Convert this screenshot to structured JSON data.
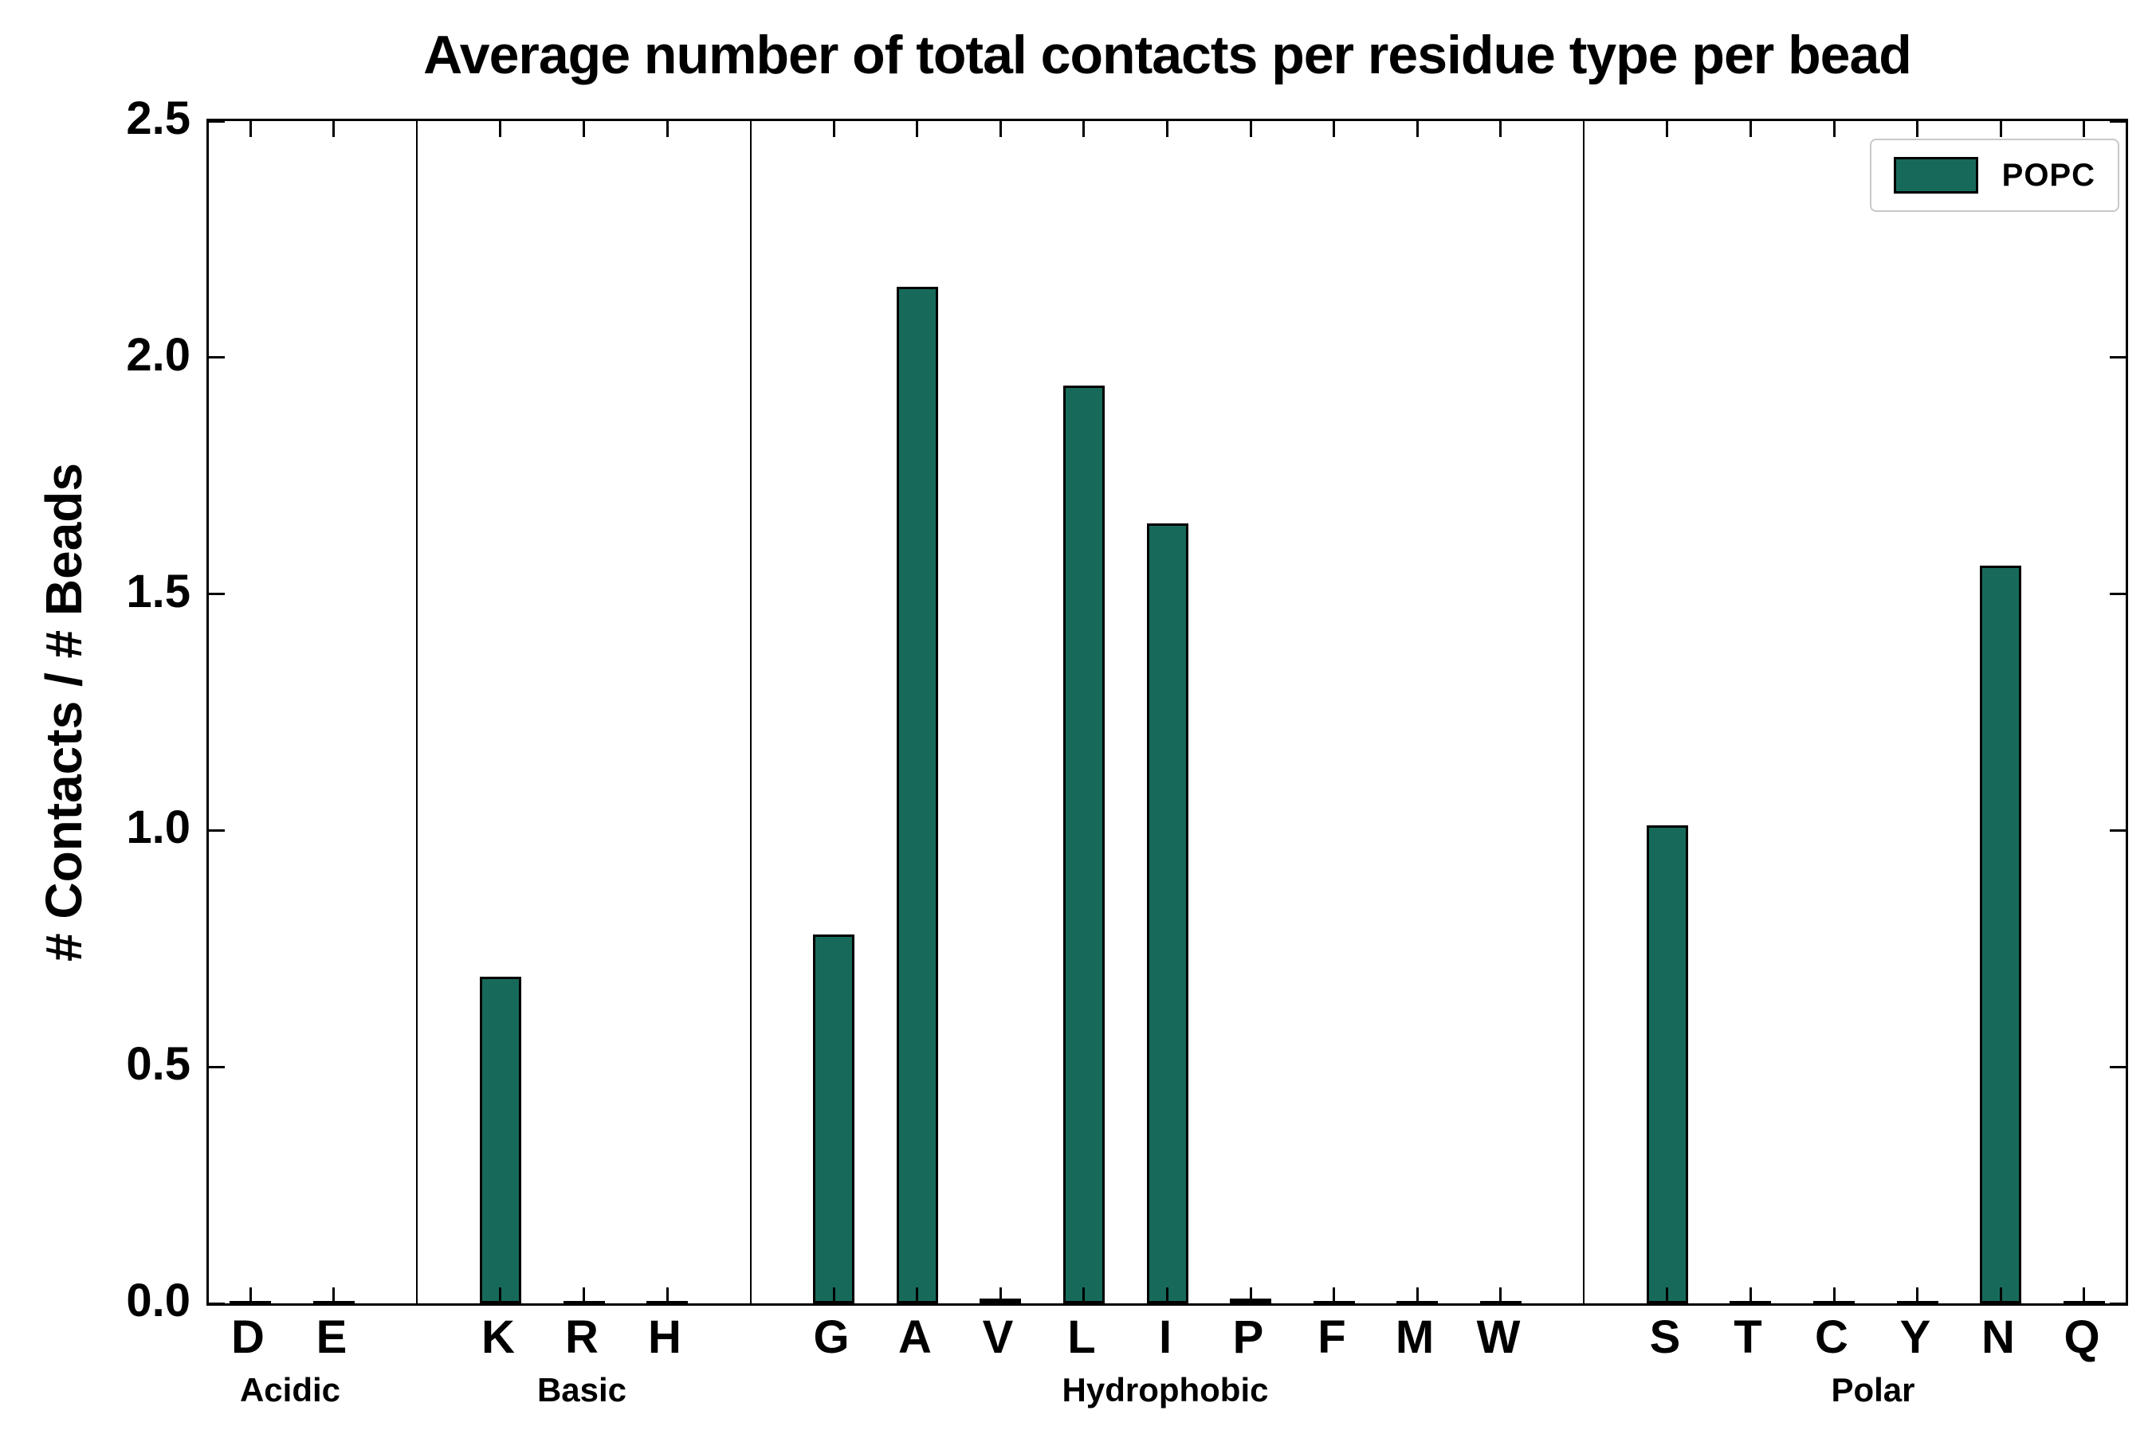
{
  "chart_data": {
    "type": "bar",
    "title": "Average number of total contacts per residue type per bead",
    "ylabel": "# Contacts / # Beads",
    "ylim": [
      0,
      2.5
    ],
    "yticks": [
      0.0,
      0.5,
      1.0,
      1.5,
      2.0,
      2.5
    ],
    "ytick_labels": [
      "0.0",
      "0.5",
      "1.0",
      "1.5",
      "2.0",
      "2.5"
    ],
    "legend_label": "POPC",
    "legend_position": "upper right",
    "grid": false,
    "bar_color": "#176A5A",
    "bar_edge_color": "#000000",
    "groups": [
      {
        "label": "Acidic",
        "categories": [
          "D",
          "E"
        ],
        "values": [
          0.0,
          0.0
        ]
      },
      {
        "label": "Basic",
        "categories": [
          "K",
          "R",
          "H"
        ],
        "values": [
          0.69,
          0.0,
          0.0
        ]
      },
      {
        "label": "Hydrophobic",
        "categories": [
          "G",
          "A",
          "V",
          "L",
          "I",
          "P",
          "F",
          "M",
          "W"
        ],
        "values": [
          0.78,
          2.15,
          0.01,
          1.94,
          1.65,
          0.01,
          0.0,
          0.0,
          0.0
        ]
      },
      {
        "label": "Polar",
        "categories": [
          "S",
          "T",
          "C",
          "Y",
          "N",
          "Q"
        ],
        "values": [
          1.01,
          0.0,
          0.0,
          0.0,
          1.56,
          0.0
        ]
      }
    ]
  }
}
